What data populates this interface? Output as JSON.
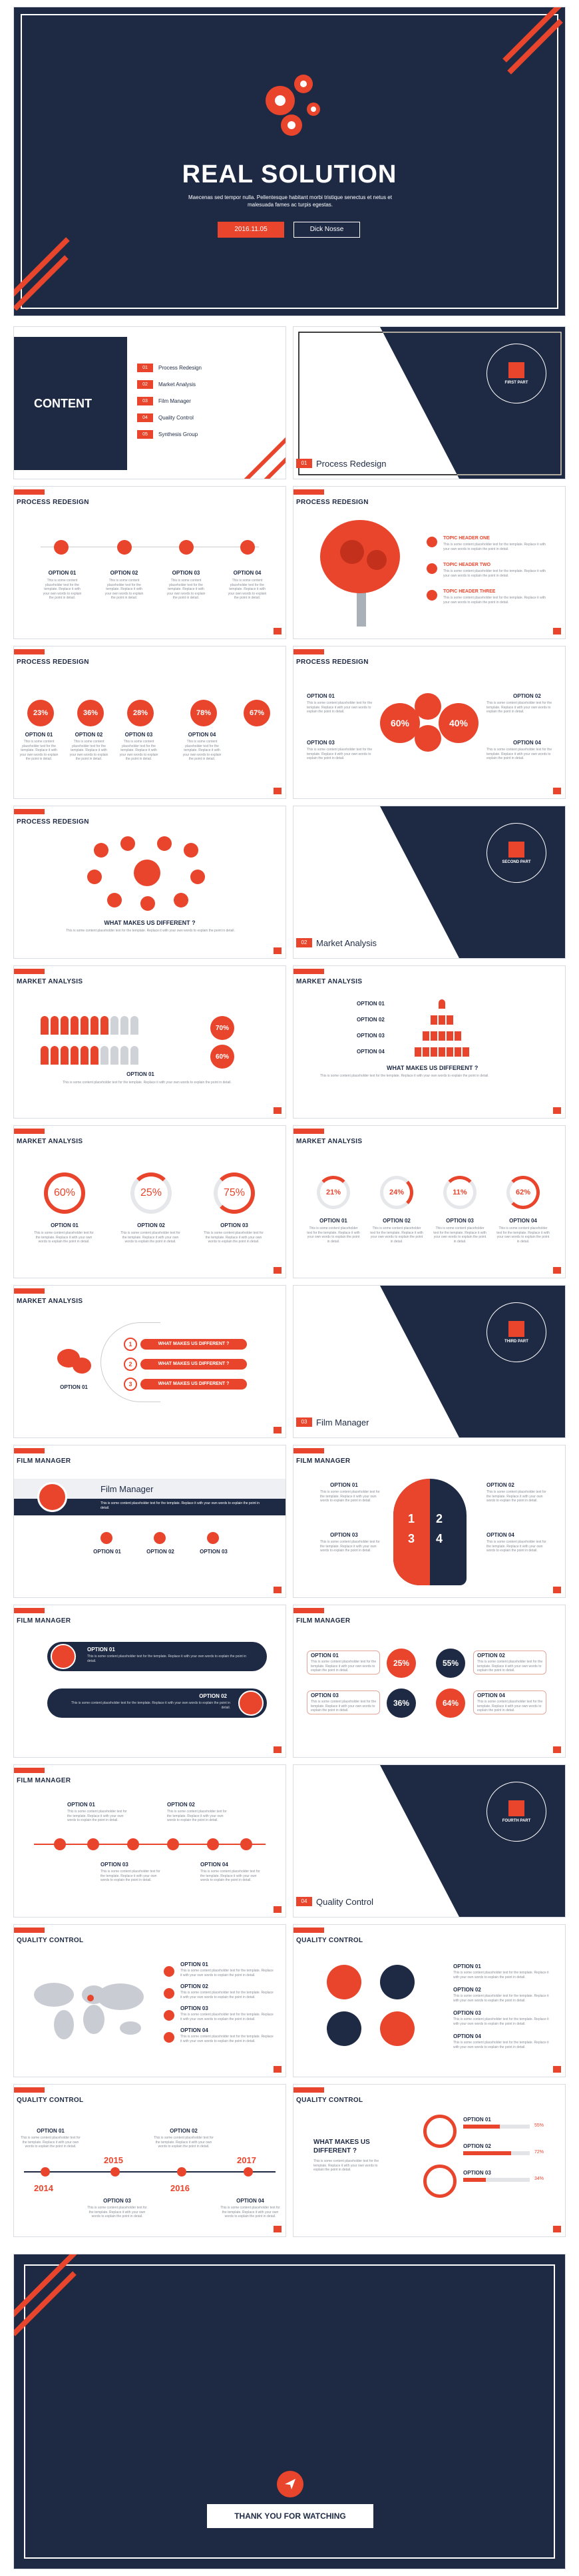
{
  "cover": {
    "title": "REAL SOLUTION",
    "subtitle": "Maecenas sed tempor nulla. Pellentesque habitant morbi tristique senectus et netus et malesuada fames ac turpis egestas.",
    "date_button": "2016.11.05",
    "author_button": "Dick Nosse"
  },
  "contents": {
    "title": "CONTENT",
    "items": [
      {
        "num": "01",
        "label": "Process Redesign"
      },
      {
        "num": "02",
        "label": "Market Analysis"
      },
      {
        "num": "03",
        "label": "Film Manager"
      },
      {
        "num": "04",
        "label": "Quality Control"
      },
      {
        "num": "05",
        "label": "Synthesis Group"
      }
    ]
  },
  "section_headers": [
    {
      "num": "01",
      "title": "Process Redesign",
      "part": "FIRST PART"
    },
    {
      "num": "02",
      "title": "Market Analysis",
      "part": "SECOND PART"
    },
    {
      "num": "03",
      "title": "Film Manager",
      "part": "THIRD PART"
    },
    {
      "num": "04",
      "title": "Quality Control",
      "part": "FOURTH PART"
    }
  ],
  "slide_titles": {
    "process": "PROCESS REDESIGN",
    "market": "MARKET ANALYSIS",
    "film": "FILM MANAGER",
    "quality": "QUALITY CONTROL"
  },
  "options": {
    "o1": "OPTION 01",
    "o2": "OPTION 02",
    "o3": "OPTION 03",
    "o4": "OPTION 04"
  },
  "topics": [
    "TOPIC HEADER ONE",
    "TOPIC HEADER TWO",
    "TOPIC HEADER THREE"
  ],
  "process_percents": [
    "23%",
    "36%",
    "28%",
    "78%",
    "67%"
  ],
  "process_donut": [
    "60%",
    "40%"
  ],
  "what_makes": "WHAT MAKES US DIFFERENT ?",
  "market_percents": [
    "70%",
    "60%"
  ],
  "market_rings": [
    "60%",
    "25%",
    "75%"
  ],
  "market_rings2": [
    "21%",
    "24%",
    "11%",
    "62%"
  ],
  "what_makes_list": [
    "WHAT MAKES US DIFFERENT ?",
    "WHAT MAKES US DIFFERENT ?",
    "WHAT MAKES US DIFFERENT ?"
  ],
  "film": {
    "title": "Film Manager",
    "head_nums": [
      "1",
      "2",
      "3",
      "4"
    ],
    "stats": [
      "25%",
      "55%",
      "36%",
      "64%"
    ]
  },
  "quality": {
    "years": [
      "2014",
      "2015",
      "2016",
      "2017"
    ],
    "bars": [
      "55%",
      "72%",
      "34%"
    ]
  },
  "thanks": "THANK YOU FOR WATCHING",
  "lorem": "This is some content placeholder text for the template. Replace it with your own words to explain the point in detail."
}
